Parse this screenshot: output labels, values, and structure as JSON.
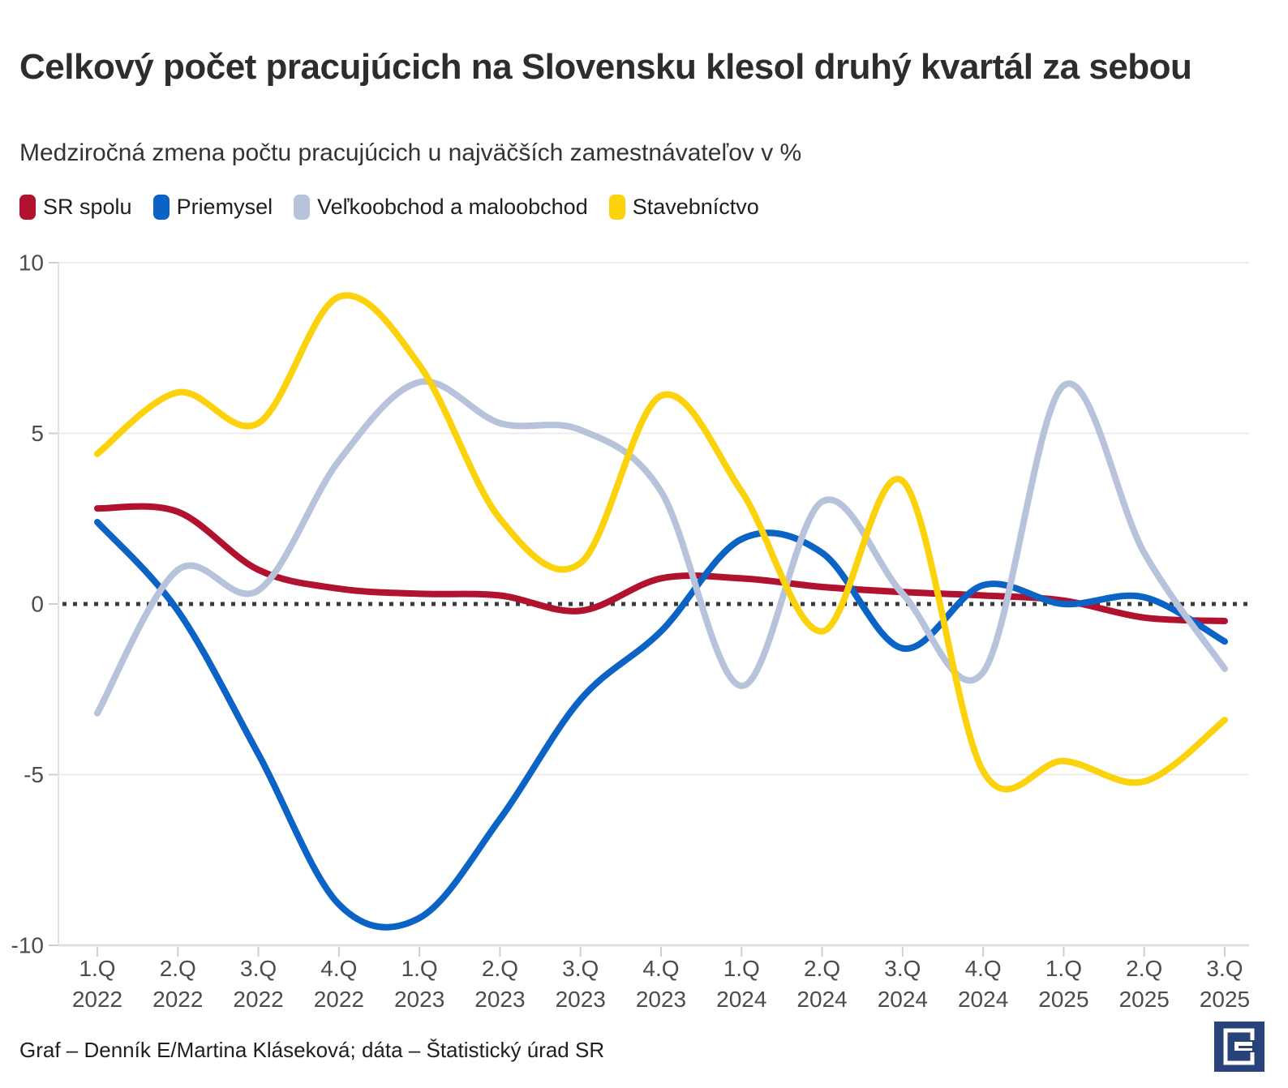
{
  "title": "Celkový počet pracujúcich na Slovensku klesol druhý kvartál za sebou",
  "subtitle": "Medziročná zmena počtu pracujúcich u najväčších zamestnávateľov v %",
  "footer": "Graf – Denník E/Martina Kláseková; dáta – Štatistický úrad SR",
  "logo": {
    "name": "Denník E",
    "background": "#274379",
    "glyph": "E"
  },
  "colors": {
    "sr_spolu": "#b11230",
    "priemysel": "#0a63c5",
    "velkoobchod": "#b7c3da",
    "stavebnictvo": "#fcd20c",
    "zero_line": "#3a3a3a"
  },
  "chart_data": {
    "type": "line",
    "title": "Celkový počet pracujúcich na Slovensku klesol druhý kvartál za sebou",
    "subtitle": "Medziročná zmena počtu pracujúcich u najväčších zamestnávateľov v %",
    "xlabel": "",
    "ylabel": "",
    "ylim": [
      -10,
      10
    ],
    "yticks": [
      10,
      5,
      0,
      -5,
      -10
    ],
    "grid": true,
    "zero_line": "dotted",
    "legend_position": "top",
    "categories": [
      "1.Q 2022",
      "2.Q 2022",
      "3.Q 2022",
      "4.Q 2022",
      "1.Q 2023",
      "2.Q 2023",
      "3.Q 2023",
      "4.Q 2023",
      "1.Q 2024",
      "2.Q 2024",
      "3.Q 2024",
      "4.Q 2024",
      "1.Q 2025",
      "2.Q 2025",
      "3.Q 2025"
    ],
    "series": [
      {
        "name": "SR spolu",
        "color": "#b11230",
        "values": [
          2.8,
          2.7,
          1.0,
          0.45,
          0.3,
          0.25,
          -0.2,
          0.75,
          0.75,
          0.5,
          0.35,
          0.25,
          0.1,
          -0.4,
          -0.5
        ]
      },
      {
        "name": "Priemysel",
        "color": "#0a63c5",
        "values": [
          2.4,
          -0.2,
          -4.4,
          -8.8,
          -9.2,
          -6.3,
          -2.8,
          -0.8,
          1.9,
          1.5,
          -1.3,
          0.55,
          0.0,
          0.2,
          -1.1
        ]
      },
      {
        "name": "Veľkoobchod a maloobchod",
        "color": "#b7c3da",
        "values": [
          -3.2,
          1.0,
          0.4,
          4.2,
          6.5,
          5.3,
          5.1,
          3.3,
          -2.4,
          3.0,
          0.3,
          -2.0,
          6.4,
          1.5,
          -1.9
        ]
      },
      {
        "name": "Stavebníctvo",
        "color": "#fcd20c",
        "values": [
          4.4,
          6.2,
          5.3,
          9.0,
          7.0,
          2.5,
          1.2,
          6.1,
          3.3,
          -0.8,
          3.6,
          -4.9,
          -4.6,
          -5.2,
          -3.4
        ]
      }
    ]
  }
}
